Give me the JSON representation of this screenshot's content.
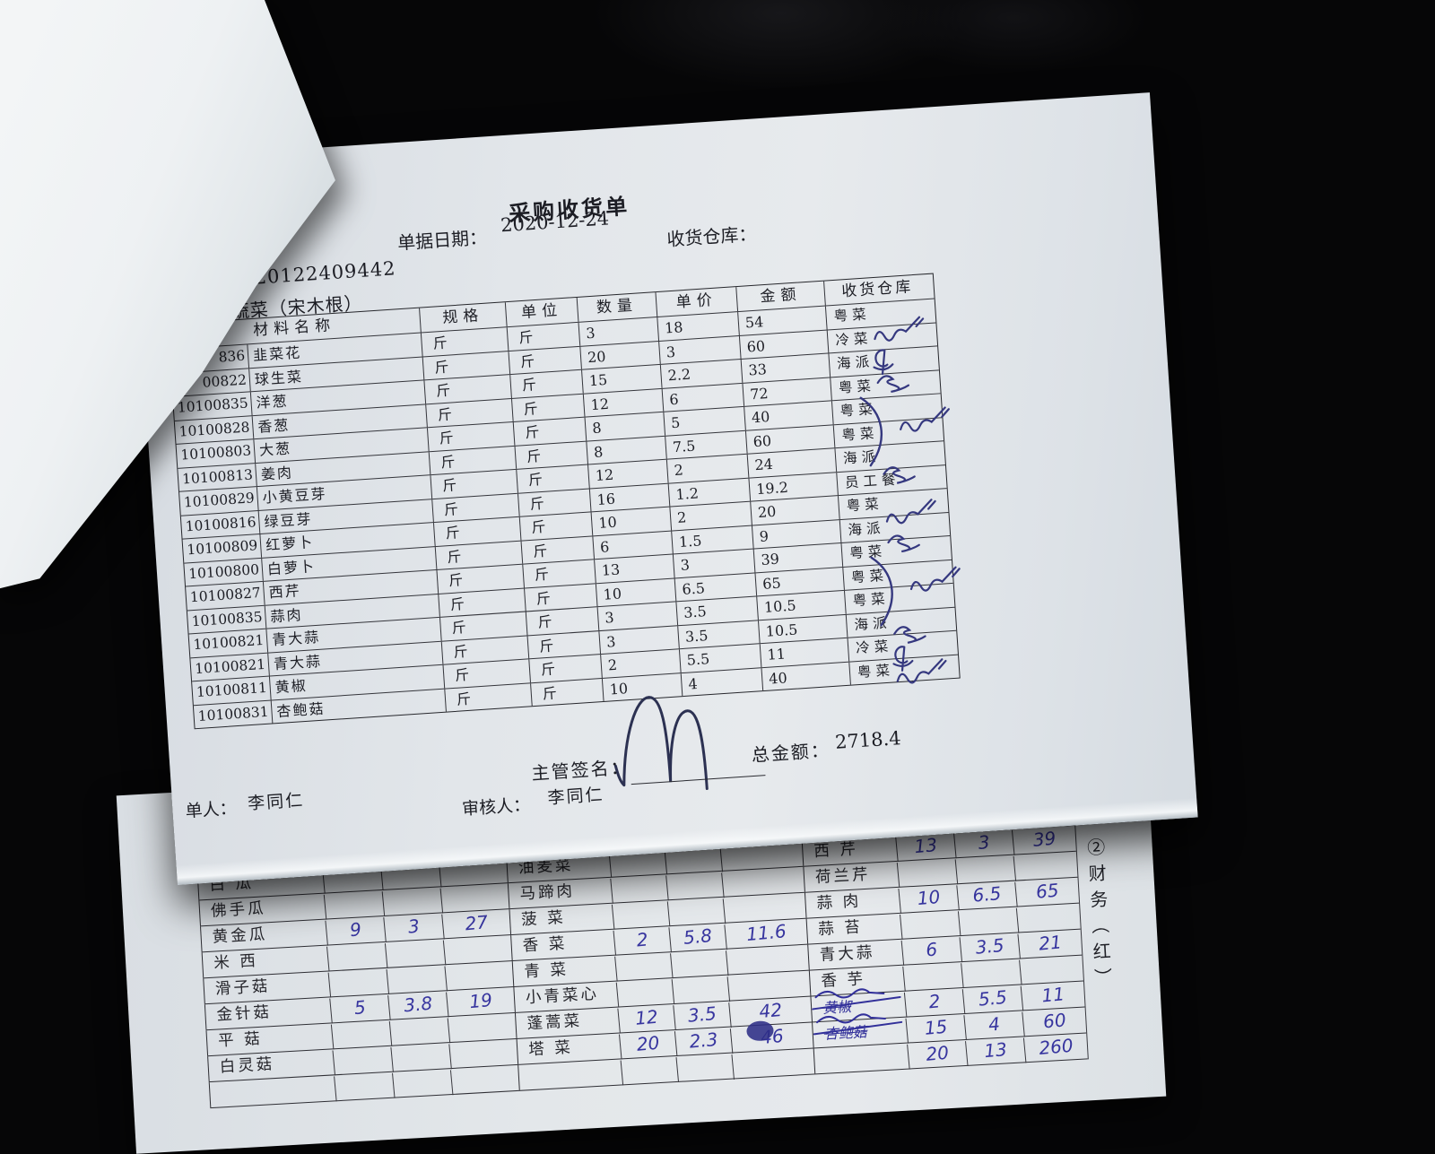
{
  "receipt": {
    "title": "采购收货单",
    "doc_no": "020122409442",
    "date_label": "单据日期：",
    "date": "2020-12-24",
    "warehouse_label": "收货仓库：",
    "category": "蔬菜（宋木根）",
    "table": {
      "headers": {
        "name": "材料名称",
        "spec": "规格",
        "unit": "单位",
        "qty": "数量",
        "price": "单价",
        "amount": "金额",
        "warehouse": "收货仓库"
      },
      "rows": [
        {
          "code": "836",
          "name": "韭菜花",
          "spec": "斤",
          "unit": "斤",
          "qty": "3",
          "price": "18",
          "amount": "54",
          "warehouse": "粤菜",
          "sign": "squiggle"
        },
        {
          "code": "00822",
          "name": "球生菜",
          "spec": "斤",
          "unit": "斤",
          "qty": "20",
          "price": "3",
          "amount": "60",
          "warehouse": "冷菜",
          "sign": "loop"
        },
        {
          "code": "10100835",
          "name": "洋葱",
          "spec": "斤",
          "unit": "斤",
          "qty": "15",
          "price": "2.2",
          "amount": "33",
          "warehouse": "海派",
          "sign": "scribble"
        },
        {
          "code": "10100828",
          "name": "香葱",
          "spec": "斤",
          "unit": "斤",
          "qty": "12",
          "price": "6",
          "amount": "72",
          "warehouse": "粤菜",
          "sign": "brace-start"
        },
        {
          "code": "10100803",
          "name": "大葱",
          "spec": "斤",
          "unit": "斤",
          "qty": "8",
          "price": "5",
          "amount": "40",
          "warehouse": "粤菜",
          "sign": "brace"
        },
        {
          "code": "10100813",
          "name": "姜肉",
          "spec": "斤",
          "unit": "斤",
          "qty": "8",
          "price": "7.5",
          "amount": "60",
          "warehouse": "粤菜",
          "sign": "brace-end"
        },
        {
          "code": "10100829",
          "name": "小黄豆芽",
          "spec": "斤",
          "unit": "斤",
          "qty": "12",
          "price": "2",
          "amount": "24",
          "warehouse": "海派",
          "sign": "scribble"
        },
        {
          "code": "10100816",
          "name": "绿豆芽",
          "spec": "斤",
          "unit": "斤",
          "qty": "16",
          "price": "1.2",
          "amount": "19.2",
          "warehouse": "员工餐",
          "sign": "none"
        },
        {
          "code": "10100809",
          "name": "红萝卜",
          "spec": "斤",
          "unit": "斤",
          "qty": "10",
          "price": "2",
          "amount": "20",
          "warehouse": "粤菜",
          "sign": "squiggle"
        },
        {
          "code": "10100800",
          "name": "白萝卜",
          "spec": "斤",
          "unit": "斤",
          "qty": "6",
          "price": "1.5",
          "amount": "9",
          "warehouse": "海派",
          "sign": "scribble"
        },
        {
          "code": "10100827",
          "name": "西芹",
          "spec": "斤",
          "unit": "斤",
          "qty": "13",
          "price": "3",
          "amount": "39",
          "warehouse": "粤菜",
          "sign": "brace-start"
        },
        {
          "code": "10100835",
          "name": "蒜肉",
          "spec": "斤",
          "unit": "斤",
          "qty": "10",
          "price": "6.5",
          "amount": "65",
          "warehouse": "粤菜",
          "sign": "brace"
        },
        {
          "code": "10100821",
          "name": "青大蒜",
          "spec": "斤",
          "unit": "斤",
          "qty": "3",
          "price": "3.5",
          "amount": "10.5",
          "warehouse": "粤菜",
          "sign": "brace-end"
        },
        {
          "code": "10100821",
          "name": "青大蒜",
          "spec": "斤",
          "unit": "斤",
          "qty": "3",
          "price": "3.5",
          "amount": "10.5",
          "warehouse": "海派",
          "sign": "scribble"
        },
        {
          "code": "10100811",
          "name": "黄椒",
          "spec": "斤",
          "unit": "斤",
          "qty": "2",
          "price": "5.5",
          "amount": "11",
          "warehouse": "冷菜",
          "sign": "loop"
        },
        {
          "code": "10100831",
          "name": "杏鲍菇",
          "spec": "斤",
          "unit": "斤",
          "qty": "10",
          "price": "4",
          "amount": "40",
          "warehouse": "粤菜",
          "sign": "squiggle"
        }
      ]
    },
    "footer": {
      "sign_label": "主管签名：",
      "total_label": "总金额：",
      "total": "2718.4"
    },
    "byline": {
      "maker_label": "单人：",
      "maker": "李同仁",
      "reviewer_label": "审核人：",
      "reviewer": "李同仁"
    }
  },
  "second_sheet": {
    "side_label": "②财务（红）",
    "groups": [
      {
        "rows": [
          {
            "name": "白 瓜"
          },
          {
            "name": "佛手瓜"
          },
          {
            "name": "黄金瓜",
            "qty": "9",
            "price": "3",
            "amount": "27"
          },
          {
            "name": "米 西"
          },
          {
            "name": "滑子菇"
          },
          {
            "name": "金针菇",
            "qty": "5",
            "price": "3.8",
            "amount": "19"
          },
          {
            "name": "平 菇"
          },
          {
            "name": "白灵菇"
          },
          {
            "name": ""
          }
        ]
      },
      {
        "rows": [
          {
            "name": "油麦菜"
          },
          {
            "name": "马蹄肉"
          },
          {
            "name": "菠 菜"
          },
          {
            "name": "香 菜",
            "qty": "2",
            "price": "5.8",
            "amount": "11.6"
          },
          {
            "name": "青 菜"
          },
          {
            "name": "小青菜心"
          },
          {
            "name": "蓬蒿菜",
            "qty": "12",
            "price": "3.5",
            "amount": "42"
          },
          {
            "name": "塔 菜",
            "qty": "20",
            "price": "2.3",
            "amount": "46"
          },
          {
            "name": ""
          }
        ]
      },
      {
        "rows": [
          {
            "name": "西 芹",
            "qty": "13",
            "price": "3",
            "amount": "39"
          },
          {
            "name": "荷兰芹"
          },
          {
            "name": "蒜 肉",
            "qty": "10",
            "price": "6.5",
            "amount": "65"
          },
          {
            "name": "蒜 苔"
          },
          {
            "name": "青大蒜",
            "qty": "6",
            "price": "3.5",
            "amount": "21"
          },
          {
            "name": "香 芋"
          },
          {
            "name": "黄椒",
            "hw": true,
            "qty": "2",
            "price": "5.5",
            "amount": "11"
          },
          {
            "name": "杏鲍菇",
            "hw": true,
            "qty": "15",
            "price": "4",
            "amount": "60"
          },
          {
            "name": "",
            "qty": "20",
            "price": "13",
            "amount": "260"
          }
        ]
      }
    ]
  }
}
